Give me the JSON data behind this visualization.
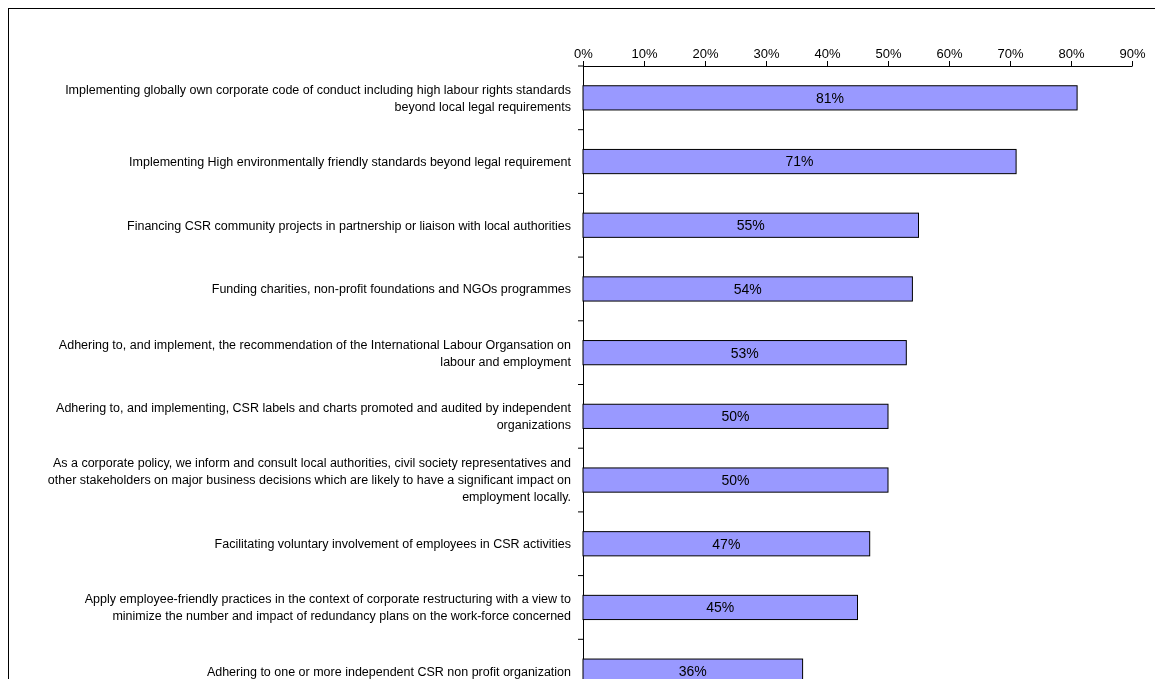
{
  "chart_data": {
    "type": "bar",
    "orientation": "horizontal",
    "categories": [
      "Implementing globally own corporate code of conduct including high labour rights standards beyond local legal requirements",
      "Implementing High environmentally friendly  standards beyond legal requirement",
      "Financing CSR community projects in partnership or liaison with local authorities",
      "Funding charities, non-profit foundations and NGOs programmes",
      "Adhering to, and implement, the recommendation of the International Labour Organsation on labour and employment",
      "Adhering to, and implementing, CSR labels and charts promoted and audited by independent organizations",
      "As a corporate policy, we inform and consult local authorities, civil society representatives and other stakeholders on major business decisions which are likely to have a significant impact on employment locally.",
      "Facilitating voluntary involvement of employees in CSR activities",
      "Apply employee-friendly practices in the context of corporate restructuring with a view to minimize the number and impact of redundancy plans on the work-force concerned",
      "Adhering to one or more independent CSR non profit organization"
    ],
    "values": [
      81,
      71,
      55,
      54,
      53,
      50,
      50,
      47,
      45,
      36
    ],
    "value_labels": [
      "81%",
      "71%",
      "55%",
      "54%",
      "53%",
      "50%",
      "50%",
      "47%",
      "45%",
      "36%"
    ],
    "color": "#9999ff",
    "xlim": [
      0,
      90
    ],
    "xticks": [
      {
        "value": 0,
        "label": "0%"
      },
      {
        "value": 10,
        "label": "10%"
      },
      {
        "value": 20,
        "label": "20%"
      },
      {
        "value": 30,
        "label": "30%"
      },
      {
        "value": 40,
        "label": "40%"
      },
      {
        "value": 50,
        "label": "50%"
      },
      {
        "value": 60,
        "label": "60%"
      },
      {
        "value": 70,
        "label": "70%"
      },
      {
        "value": 80,
        "label": "80%"
      },
      {
        "value": 90,
        "label": "90%"
      }
    ],
    "grid": false
  }
}
